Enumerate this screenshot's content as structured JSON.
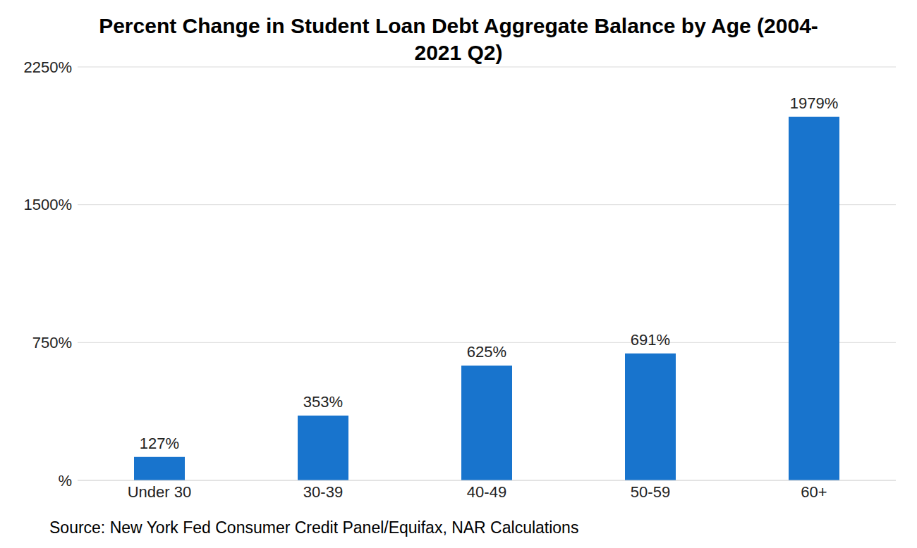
{
  "chart_data": {
    "type": "bar",
    "title": "Percent Change in Student Loan Debt Aggregate Balance by Age (2004-2021 Q2)",
    "annotation": "Source: New York Fed Consumer Credit Panel/Equifax, NAR Calculations",
    "categories": [
      "Under 30",
      "30-39",
      "40-49",
      "50-59",
      "60+"
    ],
    "values": [
      127,
      353,
      625,
      691,
      1979
    ],
    "value_labels": [
      "127%",
      "353%",
      "625%",
      "691%",
      "1979%"
    ],
    "color": "#1874cd",
    "ylim": [
      0,
      2250
    ],
    "yticks": [
      {
        "value": 0,
        "label": "%"
      },
      {
        "value": 750,
        "label": "750%"
      },
      {
        "value": 1500,
        "label": "1500%"
      },
      {
        "value": 2250,
        "label": "2250%"
      }
    ],
    "grid": true,
    "data_labels": true
  }
}
